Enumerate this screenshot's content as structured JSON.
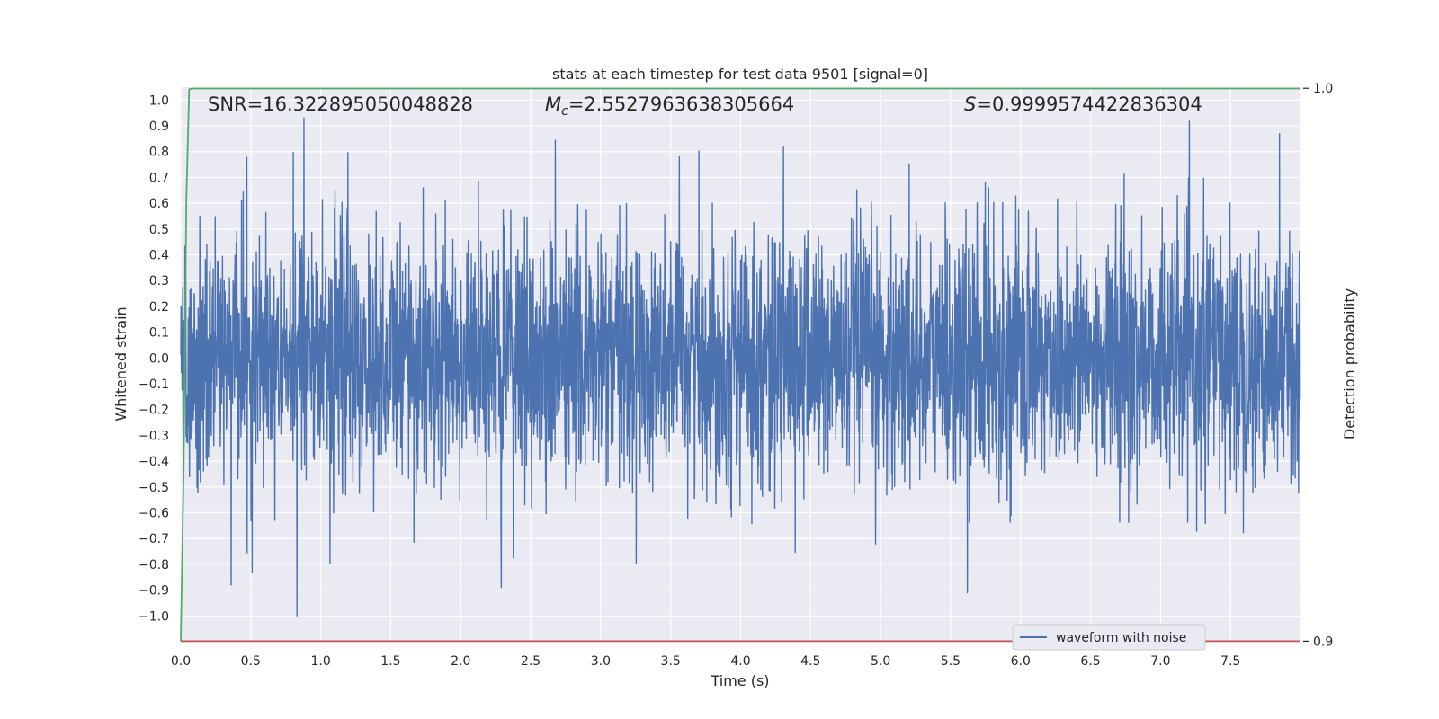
{
  "chart_data": {
    "type": "line",
    "title": "stats at each timestep for test data 9501 [signal=0]",
    "xlabel": "Time (s)",
    "ylabel": "Whitened strain",
    "ylabel_right": "Detection probability",
    "xlim": [
      0.0,
      8.0
    ],
    "ylim": [
      -1.1,
      1.05
    ],
    "ylim_right": [
      0.8999,
      1.0002
    ],
    "x_ticks": [
      "0.0",
      "0.5",
      "1.0",
      "1.5",
      "2.0",
      "2.5",
      "3.0",
      "3.5",
      "4.0",
      "4.5",
      "5.0",
      "5.5",
      "6.0",
      "6.5",
      "7.0",
      "7.5"
    ],
    "y_ticks": [
      "1.0",
      "0.9",
      "0.8",
      "0.7",
      "0.6",
      "0.5",
      "0.4",
      "0.3",
      "0.2",
      "0.1",
      "0.0",
      "-0.1",
      "-0.2",
      "-0.3",
      "-0.4",
      "-0.5",
      "-0.6",
      "-0.7",
      "-0.8",
      "-0.9",
      "-1.0"
    ],
    "y_ticks_right": [
      "1.0",
      "0.9"
    ],
    "grid": true,
    "legend_position": "lower-right",
    "annotations": {
      "snr": "SNR=16.322895050048828",
      "mc_symbol": "M",
      "mc_subscript": "c",
      "mc_value": "=2.5527963638305664",
      "s_symbol": "S",
      "s_value": "=0.9999574422836304"
    },
    "series": [
      {
        "name": "waveform with noise",
        "color": "#4c72b0",
        "axis": "left",
        "note_values": "dense noise, 1 sample per 0.002 s",
        "peaks": [
          {
            "x": 0.83,
            "y": -1.0
          },
          {
            "x": 0.88,
            "y": 0.93
          },
          {
            "x": 0.36,
            "y": -0.88
          },
          {
            "x": 2.29,
            "y": -0.89
          },
          {
            "x": 5.62,
            "y": -0.91
          },
          {
            "x": 7.85,
            "y": 0.87
          }
        ]
      },
      {
        "color": "#55a868",
        "axis": "right",
        "x": [
          0.0,
          0.02,
          0.04,
          0.06,
          0.08,
          8.0
        ],
        "y": [
          0.9,
          0.93,
          0.98,
          0.9998,
          0.99996,
          0.99996
        ]
      },
      {
        "color": "#c44e52",
        "axis": "right",
        "x": [
          0.0,
          8.0
        ],
        "y": [
          0.9,
          0.9
        ]
      }
    ]
  },
  "colors": {
    "plot_background": "#eaeaf2",
    "grid": "#ffffff",
    "waveform": "#4c72b0",
    "probability": "#55a868",
    "threshold": "#c44e52",
    "text": "#262626"
  }
}
